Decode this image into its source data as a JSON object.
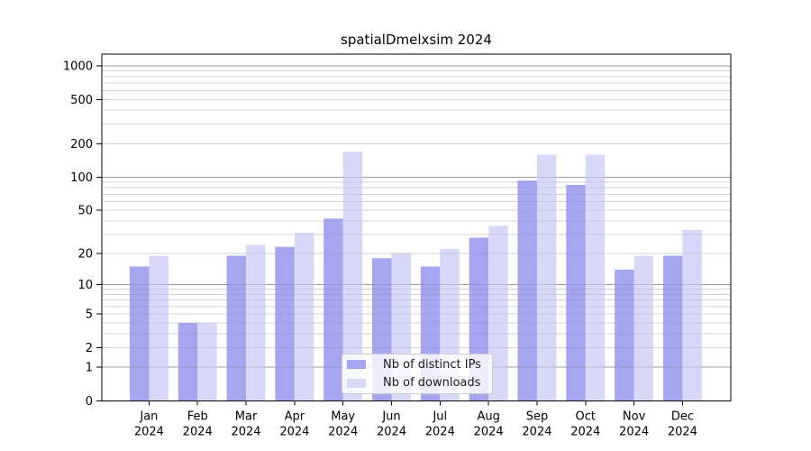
{
  "title": "spatialDmelxsim 2024",
  "chart_data": {
    "type": "bar",
    "categories": [
      "Jan 2024",
      "Feb 2024",
      "Mar 2024",
      "Apr 2024",
      "May 2024",
      "Jun 2024",
      "Jul 2024",
      "Aug 2024",
      "Sep 2024",
      "Oct 2024",
      "Nov 2024",
      "Dec 2024"
    ],
    "series": [
      {
        "name": "Nb of distinct IPs",
        "color": "#a6a6f0",
        "values": [
          15,
          4,
          19,
          23,
          42,
          18,
          15,
          28,
          93,
          85,
          14,
          19
        ]
      },
      {
        "name": "Nb of downloads",
        "color": "#d8d8f8",
        "values": [
          19,
          4,
          24,
          31,
          170,
          20,
          22,
          36,
          160,
          160,
          19,
          33
        ]
      }
    ],
    "title": "spatialDmelxsim 2024",
    "xlabel": "",
    "ylabel": "",
    "yscale": "log1p",
    "y_ticks": [
      0,
      1,
      2,
      5,
      10,
      20,
      50,
      100,
      200,
      500,
      1000
    ],
    "ylim": [
      0,
      1280
    ],
    "grid": "horizontal",
    "legend_position": "bottom-center"
  },
  "colors": {
    "major_grid": "#b0b0b0",
    "minor_grid": "#e7e7e7",
    "spine": "#000000",
    "tick_label": "#000000",
    "background": "#ffffff"
  }
}
